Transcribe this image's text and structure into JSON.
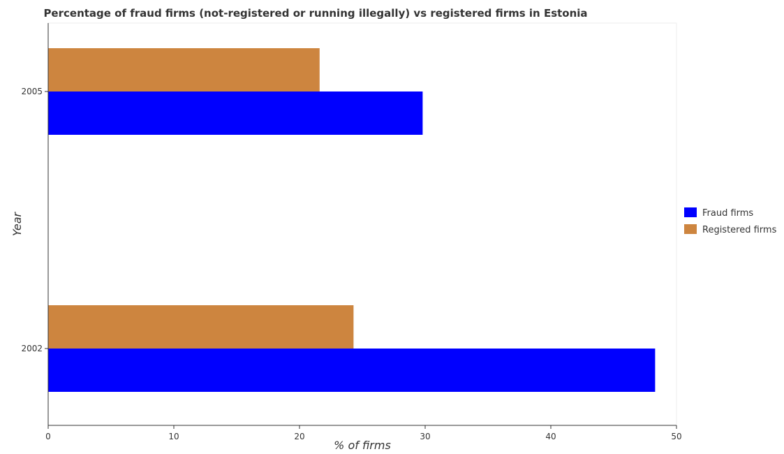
{
  "chart_data": {
    "type": "bar",
    "orientation": "horizontal",
    "title": "Percentage of fraud firms (not-registered or running illegally) vs registered firms in Estonia",
    "xlabel": "% of firms",
    "ylabel": "Year",
    "categories": [
      "2002",
      "2005"
    ],
    "series": [
      {
        "name": "Fraud firms",
        "color": "#0000ff",
        "values": [
          48.3,
          29.8
        ]
      },
      {
        "name": "Registered firms",
        "color": "#cd853f",
        "values": [
          24.3,
          21.6
        ]
      }
    ],
    "xlim": [
      0,
      50
    ],
    "xticks": [
      0,
      10,
      20,
      30,
      40,
      50
    ],
    "grid": false,
    "legend_position": "right"
  }
}
